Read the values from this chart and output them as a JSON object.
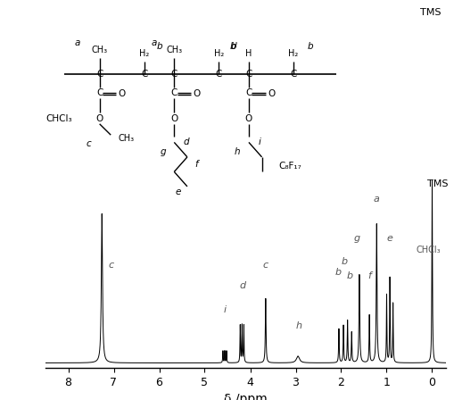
{
  "xlabel": "δ /ppm",
  "xlim": [
    8.5,
    -0.3
  ],
  "ylim": [
    -0.03,
    1.15
  ],
  "x_ticks": [
    8,
    7,
    6,
    5,
    4,
    3,
    2,
    1,
    0
  ],
  "background_color": "#ffffff",
  "figsize": [
    5.1,
    4.48
  ],
  "dpi": 100,
  "spectrum_area": [
    0.1,
    0.08,
    0.88,
    0.5
  ],
  "struct_area": [
    0.1,
    0.52,
    0.82,
    0.46
  ]
}
